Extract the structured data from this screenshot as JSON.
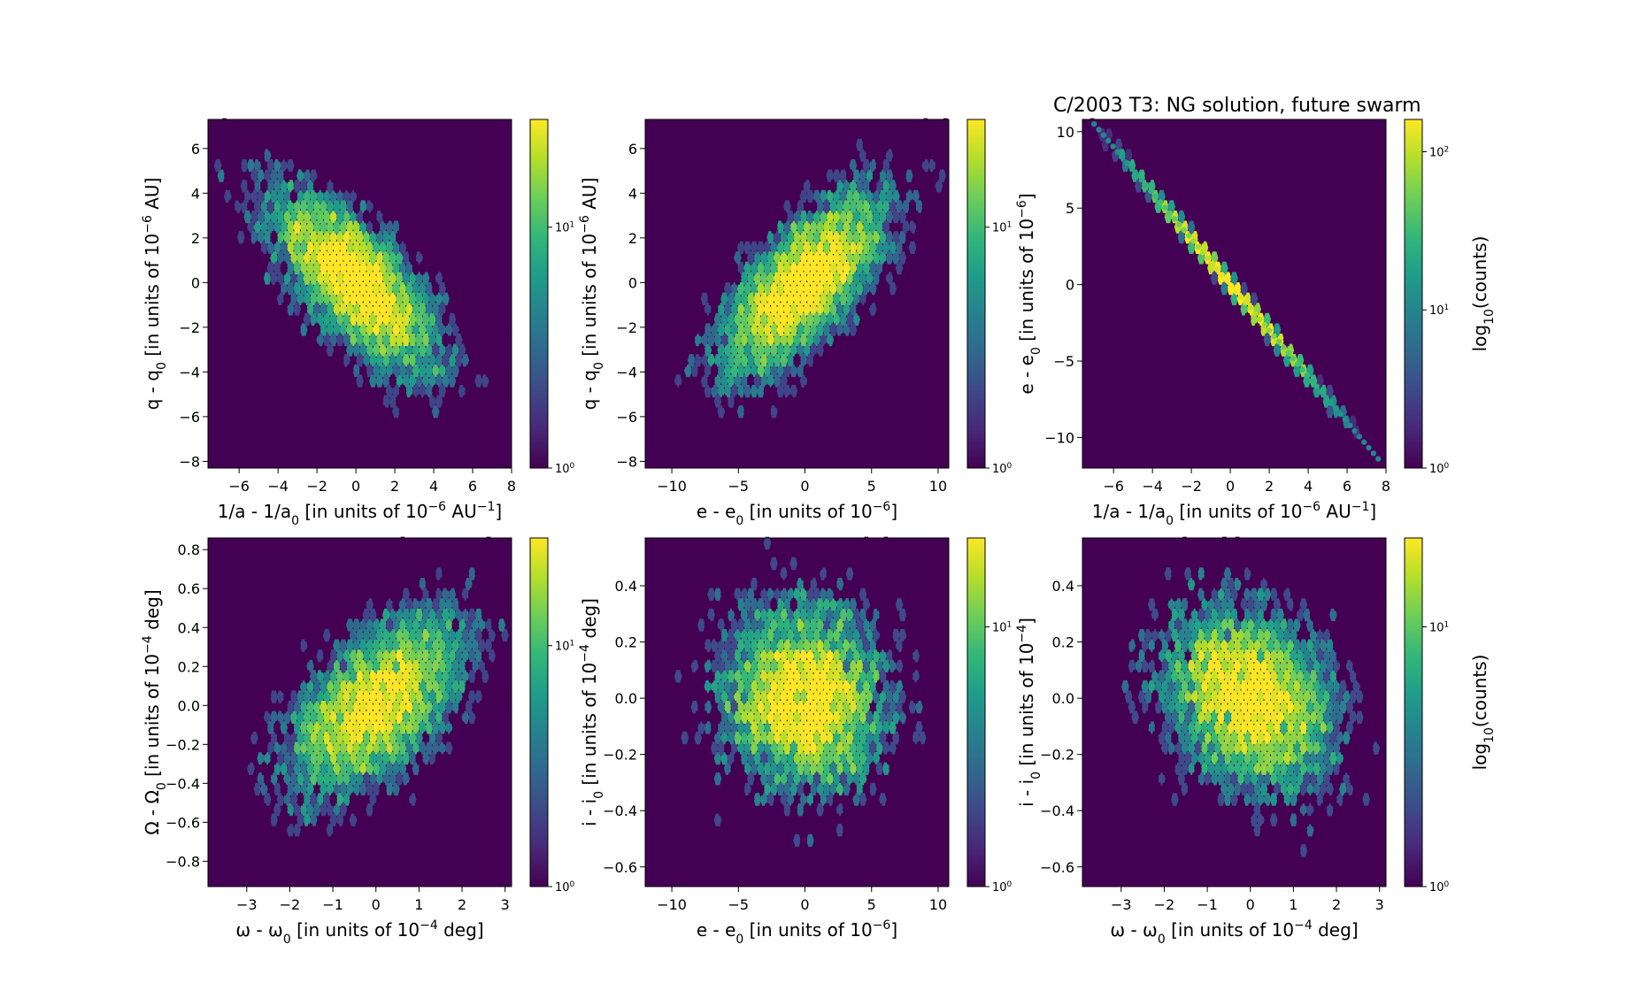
{
  "figure_title": "C/2003 T3:  NG solution, future swarm",
  "colormap": [
    "#440154",
    "#482878",
    "#3e4989",
    "#31688e",
    "#26828e",
    "#1f9e89",
    "#35b779",
    "#6ece58",
    "#b5de2b",
    "#fde725"
  ],
  "background_color": "#440154",
  "chart_data": [
    {
      "type": "hexbin",
      "xlabel": "1/a - 1/a",
      "xlabel_sub": "0",
      "xlabel_tail": " [in units of 10",
      "xlabel_sup": "−6",
      "xlabel_end": " AU",
      "xlabel_sup2": "−1",
      "xlabel_close": "]",
      "ylabel": "q - q",
      "ylabel_sub": "0",
      "ylabel_tail": " [in units of 10",
      "ylabel_sup": "−6",
      "ylabel_end": " AU]",
      "xlim": [
        -7.6,
        8.0
      ],
      "ylim": [
        -8.3,
        7.3
      ],
      "xticks": [
        -6,
        -4,
        -2,
        0,
        2,
        4,
        6,
        8
      ],
      "yticks": [
        -8,
        -6,
        -4,
        -2,
        0,
        2,
        4,
        6
      ],
      "xtick_labels": [
        "−6",
        "−4",
        "−2",
        "0",
        "2",
        "4",
        "6",
        "8"
      ],
      "ytick_labels": [
        "−8",
        "−6",
        "−4",
        "−2",
        "0",
        "2",
        "4",
        "6"
      ],
      "cbar_scale": "log",
      "cbar_range": [
        1,
        28
      ],
      "cbar_ticks": [
        {
          "value": 1,
          "base": "10",
          "exp": "0"
        },
        {
          "value": 10,
          "base": "10",
          "exp": "1"
        }
      ],
      "cbar_label": "",
      "center": [
        0,
        0
      ],
      "sigma": [
        2.2,
        2.1
      ],
      "correlation": -0.7,
      "n_points": 5000
    },
    {
      "type": "hexbin",
      "xlabel": "e - e",
      "xlabel_sub": "0",
      "xlabel_tail": " [in units of 10",
      "xlabel_sup": "−6",
      "xlabel_end": "",
      "xlabel_sup2": "",
      "xlabel_close": "]",
      "ylabel": "q - q",
      "ylabel_sub": "0",
      "ylabel_tail": " [in units of 10",
      "ylabel_sup": "−6",
      "ylabel_end": " AU]",
      "xlim": [
        -12.0,
        10.8
      ],
      "ylim": [
        -8.3,
        7.3
      ],
      "xticks": [
        -10,
        -5,
        0,
        5,
        10
      ],
      "yticks": [
        -8,
        -6,
        -4,
        -2,
        0,
        2,
        4,
        6
      ],
      "xtick_labels": [
        "−10",
        "−5",
        "0",
        "5",
        "10"
      ],
      "ytick_labels": [
        "−8",
        "−6",
        "−4",
        "−2",
        "0",
        "2",
        "4",
        "6"
      ],
      "cbar_scale": "log",
      "cbar_range": [
        1,
        28
      ],
      "cbar_ticks": [
        {
          "value": 1,
          "base": "10",
          "exp": "0"
        },
        {
          "value": 10,
          "base": "10",
          "exp": "1"
        }
      ],
      "cbar_label": "",
      "center": [
        0,
        0
      ],
      "sigma": [
        3.2,
        2.1
      ],
      "correlation": 0.7,
      "n_points": 5000
    },
    {
      "type": "hexbin",
      "xlabel": "1/a - 1/a",
      "xlabel_sub": "0",
      "xlabel_tail": " [in units of 10",
      "xlabel_sup": "−6",
      "xlabel_end": " AU",
      "xlabel_sup2": "−1",
      "xlabel_close": "]",
      "ylabel": "e - e",
      "ylabel_sub": "0",
      "ylabel_tail": " [in units of 10",
      "ylabel_sup": "−6",
      "ylabel_end": "]",
      "xlim": [
        -7.6,
        8.0
      ],
      "ylim": [
        -12.0,
        10.8
      ],
      "xticks": [
        -6,
        -4,
        -2,
        0,
        2,
        4,
        6,
        8
      ],
      "yticks": [
        -10,
        -5,
        0,
        5,
        10
      ],
      "xtick_labels": [
        "−6",
        "−4",
        "−2",
        "0",
        "2",
        "4",
        "6",
        "8"
      ],
      "ytick_labels": [
        "−10",
        "−5",
        "0",
        "5",
        "10"
      ],
      "cbar_scale": "log",
      "cbar_range": [
        1,
        160
      ],
      "cbar_ticks": [
        {
          "value": 1,
          "base": "10",
          "exp": "0"
        },
        {
          "value": 10,
          "base": "10",
          "exp": "1"
        },
        {
          "value": 100,
          "base": "10",
          "exp": "2"
        }
      ],
      "cbar_label": "log",
      "cbar_label_sub": "10",
      "cbar_label_tail": "(counts)",
      "line": {
        "x_from": -7,
        "x_to": 7.6,
        "slope": -1.5
      },
      "center": [
        0,
        0
      ],
      "sigma": [
        2.2,
        3.3
      ],
      "correlation": -0.999,
      "n_points": 5000
    },
    {
      "type": "hexbin",
      "xlabel": "ω - ω",
      "xlabel_sub": "0",
      "xlabel_tail": " [in units of 10",
      "xlabel_sup": "−4",
      "xlabel_end": " deg",
      "xlabel_sup2": "",
      "xlabel_close": "]",
      "ylabel": "Ω - Ω",
      "ylabel_sub": "0",
      "ylabel_tail": " [in units of 10",
      "ylabel_sup": "−4",
      "ylabel_end": " deg]",
      "xlim": [
        -3.9,
        3.15
      ],
      "ylim": [
        -0.93,
        0.86
      ],
      "xticks": [
        -3,
        -2,
        -1,
        0,
        1,
        2,
        3
      ],
      "yticks": [
        -0.8,
        -0.6,
        -0.4,
        -0.2,
        0.0,
        0.2,
        0.4,
        0.6,
        0.8
      ],
      "xtick_labels": [
        "−3",
        "−2",
        "−1",
        "0",
        "1",
        "2",
        "3"
      ],
      "ytick_labels": [
        "−0.8",
        "−0.6",
        "−0.4",
        "−0.2",
        "0.0",
        "0.2",
        "0.4",
        "0.6",
        "0.8"
      ],
      "cbar_scale": "log",
      "cbar_range": [
        1,
        28
      ],
      "cbar_ticks": [
        {
          "value": 1,
          "base": "10",
          "exp": "0"
        },
        {
          "value": 10,
          "base": "10",
          "exp": "1"
        }
      ],
      "cbar_label": "",
      "center": [
        0,
        0
      ],
      "sigma": [
        1.05,
        0.24
      ],
      "correlation": 0.55,
      "n_points": 5000
    },
    {
      "type": "hexbin",
      "xlabel": "e - e",
      "xlabel_sub": "0",
      "xlabel_tail": " [in units of 10",
      "xlabel_sup": "−6",
      "xlabel_end": "",
      "xlabel_sup2": "",
      "xlabel_close": "]",
      "ylabel": "i - i",
      "ylabel_sub": "0",
      "ylabel_tail": " [in units of 10",
      "ylabel_sup": "−4",
      "ylabel_end": " deg]",
      "xlim": [
        -12.0,
        10.8
      ],
      "ylim": [
        -0.67,
        0.57
      ],
      "xticks": [
        -10,
        -5,
        0,
        5,
        10
      ],
      "yticks": [
        -0.6,
        -0.4,
        -0.2,
        0.0,
        0.2,
        0.4
      ],
      "xtick_labels": [
        "−10",
        "−5",
        "0",
        "5",
        "10"
      ],
      "ytick_labels": [
        "−0.6",
        "−0.4",
        "−0.2",
        "0.0",
        "0.2",
        "0.4"
      ],
      "cbar_scale": "log",
      "cbar_range": [
        1,
        22
      ],
      "cbar_ticks": [
        {
          "value": 1,
          "base": "10",
          "exp": "0"
        },
        {
          "value": 10,
          "base": "10",
          "exp": "1"
        }
      ],
      "cbar_label": "",
      "center": [
        0,
        0
      ],
      "sigma": [
        3.2,
        0.17
      ],
      "correlation": -0.05,
      "n_points": 5000
    },
    {
      "type": "hexbin",
      "xlabel": "ω - ω",
      "xlabel_sub": "0",
      "xlabel_tail": " [in units of 10",
      "xlabel_sup": "−4",
      "xlabel_end": " deg",
      "xlabel_sup2": "",
      "xlabel_close": "]",
      "ylabel": "i - i",
      "ylabel_sub": "0",
      "ylabel_tail": " [in units of 10",
      "ylabel_sup": "−4",
      "ylabel_end": "]",
      "xlim": [
        -3.9,
        3.15
      ],
      "ylim": [
        -0.67,
        0.57
      ],
      "xticks": [
        -3,
        -2,
        -1,
        0,
        1,
        2,
        3
      ],
      "yticks": [
        -0.6,
        -0.4,
        -0.2,
        0.0,
        0.2,
        0.4
      ],
      "xtick_labels": [
        "−3",
        "−2",
        "−1",
        "0",
        "1",
        "2",
        "3"
      ],
      "ytick_labels": [
        "−0.6",
        "−0.4",
        "−0.2",
        "0.0",
        "0.2",
        "0.4"
      ],
      "cbar_scale": "log",
      "cbar_range": [
        1,
        22
      ],
      "cbar_ticks": [
        {
          "value": 1,
          "base": "10",
          "exp": "0"
        },
        {
          "value": 10,
          "base": "10",
          "exp": "1"
        }
      ],
      "cbar_label": "log",
      "cbar_label_sub": "10",
      "cbar_label_tail": "(counts)",
      "center": [
        0,
        0
      ],
      "sigma": [
        1.05,
        0.17
      ],
      "correlation": -0.25,
      "n_points": 5000
    }
  ]
}
